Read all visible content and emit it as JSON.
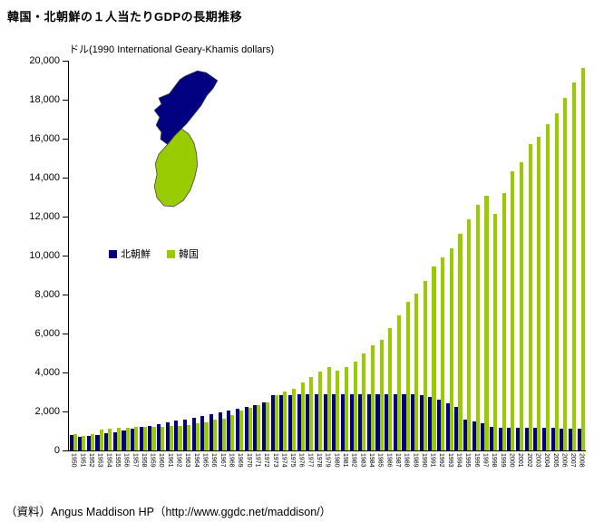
{
  "source": "（資料）Angus Maddison HP（http://www.ggdc.net/maddison/）",
  "colors": {
    "north_korea": "#000080",
    "south_korea": "#99CC00",
    "map_outline": "#404040",
    "axis": "#000000"
  },
  "chart_data": {
    "type": "bar",
    "title": "韓国・北朝鮮の１人当たりGDPの長期推移",
    "ylabel": "ドル(1990 International Geary-Khamis dollars)",
    "xlabel": "",
    "ylim": [
      0,
      20000
    ],
    "ytick_interval": 2000,
    "grid": false,
    "legend_position": "inside-upper-left",
    "categories": [
      "1950",
      "1951",
      "1952",
      "1953",
      "1954",
      "1955",
      "1956",
      "1957",
      "1958",
      "1959",
      "1960",
      "1961",
      "1962",
      "1963",
      "1964",
      "1965",
      "1966",
      "1967",
      "1968",
      "1969",
      "1970",
      "1971",
      "1972",
      "1973",
      "1974",
      "1975",
      "1976",
      "1977",
      "1978",
      "1979",
      "1980",
      "1981",
      "1982",
      "1983",
      "1984",
      "1985",
      "1986",
      "1987",
      "1988",
      "1989",
      "1990",
      "1991",
      "1992",
      "1993",
      "1994",
      "1995",
      "1996",
      "1997",
      "1998",
      "1999",
      "2000",
      "2001",
      "2002",
      "2003",
      "2004",
      "2005",
      "2006",
      "2007",
      "2008"
    ],
    "series": [
      {
        "key": "north",
        "name": "北朝鮮",
        "color": "#000080",
        "values": [
          770,
          686,
          757,
          813,
          881,
          954,
          1027,
          1106,
          1190,
          1279,
          1367,
          1440,
          1514,
          1592,
          1674,
          1757,
          1845,
          1937,
          2033,
          2133,
          2236,
          2340,
          2447,
          2841,
          2858,
          2861,
          2874,
          2879,
          2884,
          2886,
          2886,
          2888,
          2890,
          2890,
          2897,
          2903,
          2898,
          2900,
          2901,
          2903,
          2841,
          2750,
          2600,
          2400,
          2250,
          1600,
          1500,
          1400,
          1200,
          1150,
          1150,
          1150,
          1150,
          1150,
          1150,
          1150,
          1130,
          1122,
          1122
        ]
      },
      {
        "key": "south",
        "name": "韓国",
        "color": "#99CC00",
        "values": [
          854,
          768,
          857,
          1072,
          1106,
          1169,
          1153,
          1208,
          1233,
          1224,
          1226,
          1247,
          1245,
          1316,
          1390,
          1436,
          1568,
          1645,
          1820,
          2040,
          2167,
          2332,
          2456,
          2824,
          3015,
          3162,
          3476,
          3775,
          4064,
          4294,
          4114,
          4302,
          4557,
          4986,
          5375,
          5670,
          6263,
          6916,
          7621,
          8027,
          8704,
          9445,
          9895,
          10361,
          11125,
          11873,
          12587,
          13072,
          12134,
          13232,
          14343,
          14783,
          15727,
          16091,
          16743,
          17306,
          18103,
          18887,
          19614
        ]
      }
    ]
  }
}
